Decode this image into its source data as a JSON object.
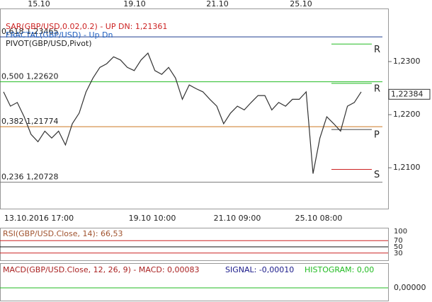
{
  "chart_data": {
    "type": "line",
    "legend": [
      "SAR(GBP/USD,0.02,0.2) - UP  DN: 1,21361",
      "FRACTAL(GBP/USD) - Up  Dn",
      "PIVOT(GBP/USD,Pivot)"
    ],
    "top_dates": [
      "15.10",
      "19.10",
      "21.10",
      "25.10"
    ],
    "x_labels": [
      "13.10.2016 17:00",
      "19.10 10:00",
      "21.10 09:00",
      "25.10 08:00"
    ],
    "ylim": [
      1.2023,
      1.24
    ],
    "yticks": [
      {
        "value": 1.23,
        "label": "1,2300"
      },
      {
        "value": 1.22,
        "label": "1,2200"
      },
      {
        "value": 1.21,
        "label": "1,2100"
      }
    ],
    "last_price": {
      "value": 1.22384,
      "label": "1,22384"
    },
    "fibo": [
      {
        "label": "0,618 1,23465",
        "value": 1.23465,
        "color": "#1f3f8f"
      },
      {
        "label": "0,500 1,22620",
        "value": 1.2262,
        "color": "#22bb22"
      },
      {
        "label": "0,382 1,21774",
        "value": 1.21774,
        "color": "#cc7722"
      },
      {
        "label": "0,236 1,20728",
        "value": 1.20728,
        "color": "#777777"
      }
    ],
    "pivots": [
      {
        "label": "R",
        "value": 1.2333,
        "color": "#22bb22"
      },
      {
        "label": "R",
        "value": 1.2259,
        "color": "#22bb22"
      },
      {
        "label": "P",
        "value": 1.2172,
        "color": "#444444"
      },
      {
        "label": "S",
        "value": 1.2097,
        "color": "#cc2222"
      }
    ],
    "series": [
      {
        "name": "GBP/USD",
        "color": "#333333",
        "values": [
          1.2243,
          1.2216,
          1.2223,
          1.2196,
          1.2163,
          1.2149,
          1.2169,
          1.2156,
          1.2169,
          1.2143,
          1.2183,
          1.2203,
          1.2243,
          1.2269,
          1.2289,
          1.2296,
          1.2309,
          1.2303,
          1.2289,
          1.2283,
          1.2303,
          1.2316,
          1.2283,
          1.2276,
          1.2289,
          1.2269,
          1.2229,
          1.2256,
          1.2249,
          1.2243,
          1.2229,
          1.2216,
          1.2183,
          1.2203,
          1.2216,
          1.2209,
          1.2223,
          1.2236,
          1.2236,
          1.2209,
          1.2223,
          1.2216,
          1.2229,
          1.2229,
          1.2243,
          1.2089,
          1.2156,
          1.2196,
          1.2183,
          1.2169,
          1.2216,
          1.2223,
          1.2243
        ]
      }
    ],
    "rsi": {
      "title": "RSI(GBP/USD.Close, 14): 66,53",
      "ylim": [
        0,
        100
      ],
      "yticks": [
        100,
        70,
        50,
        30
      ]
    },
    "macd": {
      "title": "MACD(GBP/USD.Close, 12, 26, 9)  -  MACD: 0,00083",
      "signal": "SIGNAL: -0,00010",
      "histogram": "HISTOGRAM: 0,00",
      "yticks": [
        {
          "value": 0,
          "label": "0,00000"
        }
      ]
    }
  }
}
